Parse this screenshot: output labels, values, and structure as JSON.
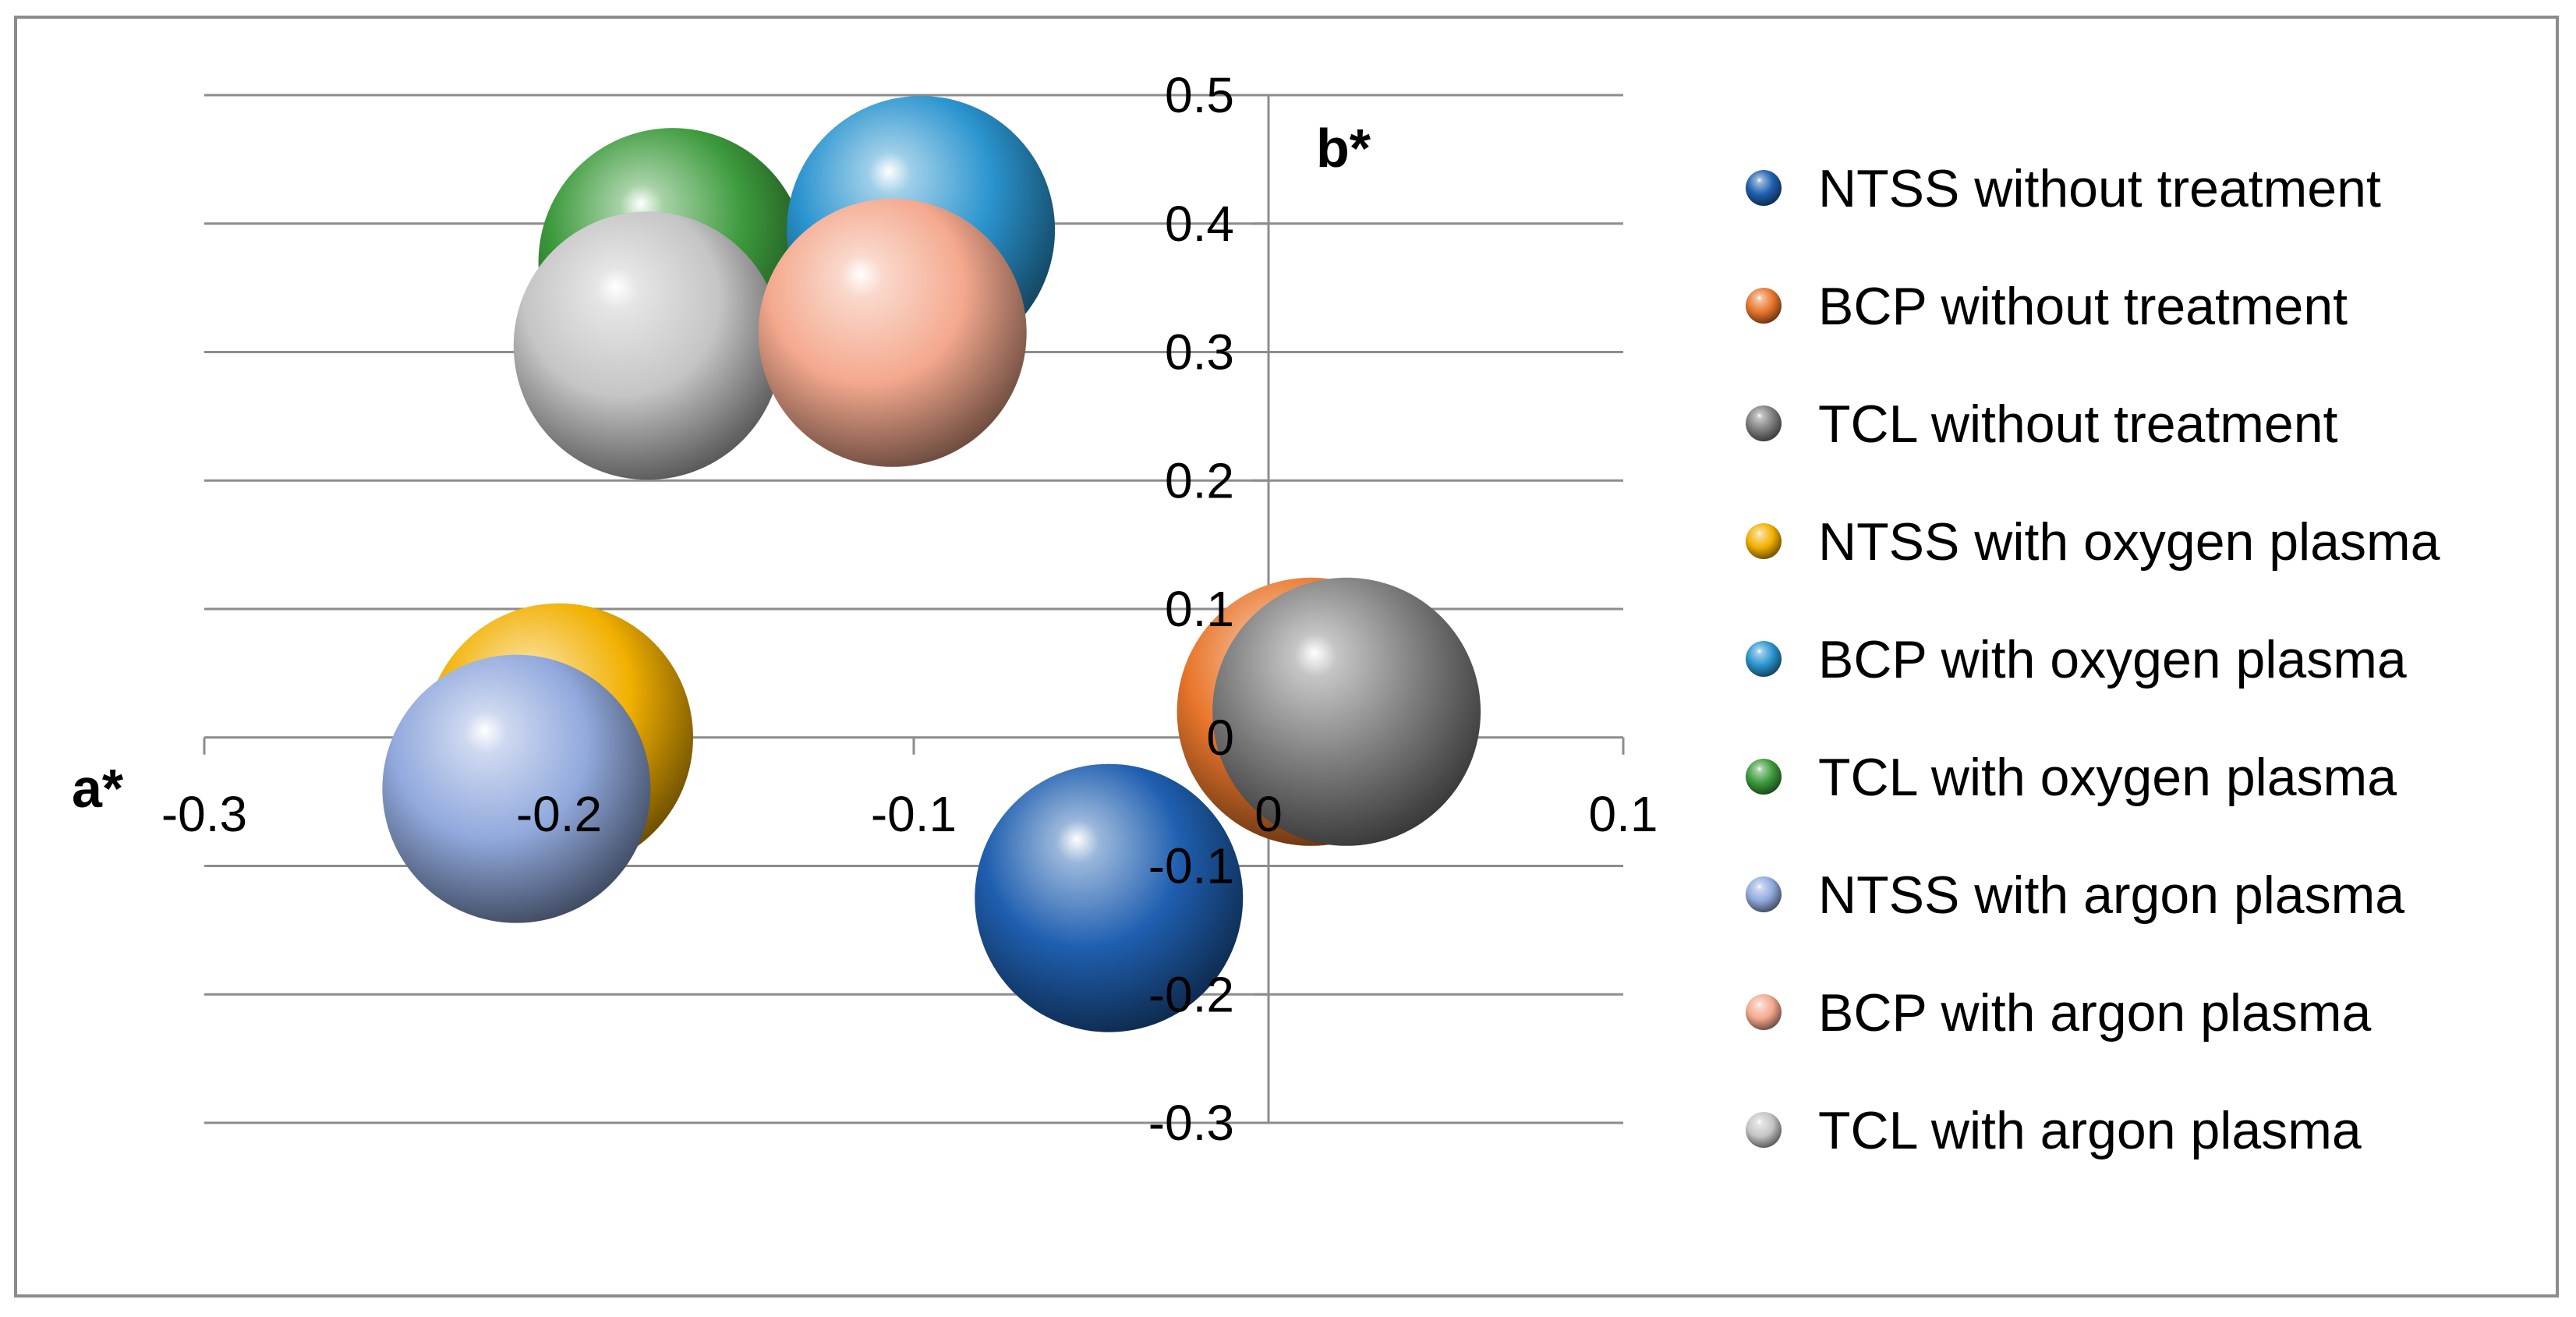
{
  "chart_data": {
    "type": "bubble",
    "xlabel": "a*",
    "ylabel": "b*",
    "xlim": [
      -0.3,
      0.1
    ],
    "ylim": [
      -0.3,
      0.5
    ],
    "x_ticks": [
      -0.3,
      -0.2,
      -0.1,
      0,
      0.1
    ],
    "y_ticks": [
      0.5,
      0.4,
      0.3,
      0.2,
      0.1,
      0,
      -0.1,
      -0.2,
      -0.3
    ],
    "x_tick_labels": [
      "-0.3",
      "-0.2",
      "-0.1",
      "0",
      "0.1"
    ],
    "y_tick_labels": [
      "0.5",
      "0.4",
      "0.3",
      "0.2",
      "0.1",
      "0",
      "-0.1",
      "-0.2",
      "-0.3"
    ],
    "grid": "horizontal",
    "legend_position": "right",
    "series": [
      {
        "name": "NTSS without treatment",
        "x": -0.045,
        "y": -0.125,
        "color": "#1f5fb0"
      },
      {
        "name": "BCP without treatment",
        "x": 0.012,
        "y": 0.02,
        "color": "#e9762b"
      },
      {
        "name": "TCL without treatment",
        "x": 0.022,
        "y": 0.02,
        "color": "#7f7f7f"
      },
      {
        "name": "NTSS with oxygen plasma",
        "x": -0.2,
        "y": 0.0,
        "color": "#f2b000"
      },
      {
        "name": "BCP with oxygen plasma",
        "x": -0.098,
        "y": 0.395,
        "color": "#2a94cf"
      },
      {
        "name": "TCL with oxygen plasma",
        "x": -0.168,
        "y": 0.37,
        "color": "#3c9a3c"
      },
      {
        "name": "NTSS with argon plasma",
        "x": -0.212,
        "y": -0.04,
        "color": "#91a9dd"
      },
      {
        "name": "BCP with argon plasma",
        "x": -0.106,
        "y": 0.315,
        "color": "#f4a98e"
      },
      {
        "name": "TCL with argon plasma",
        "x": -0.175,
        "y": 0.305,
        "color": "#c5c5c5"
      }
    ]
  }
}
